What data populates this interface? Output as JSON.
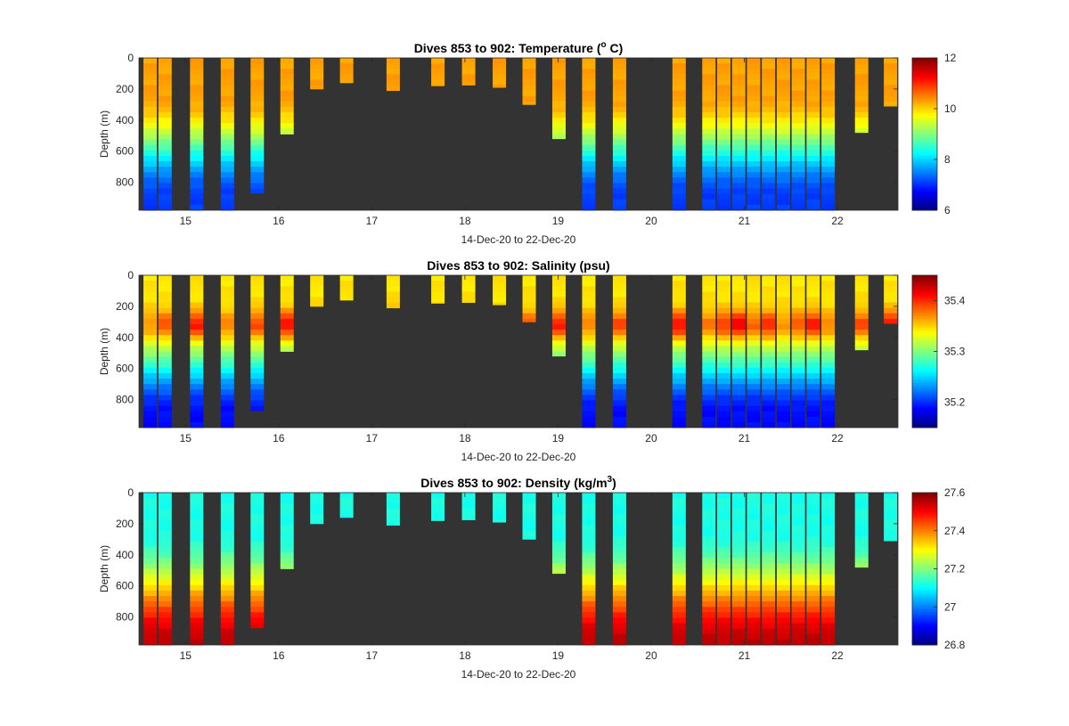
{
  "figure": {
    "background": "#ffffff",
    "plot_background": "#333333",
    "colormap": "jet"
  },
  "chart_data": [
    {
      "type": "heatmap",
      "title": "Dives 853 to 902: Temperature (° C)",
      "title_parts": {
        "prefix": "Dives 853 to 902: Temperature (",
        "superscript": "o",
        "suffix": " C)"
      },
      "xlabel": "14-Dec-20 to 22-Dec-20",
      "ylabel": "Depth (m)",
      "x_ticks": [
        "15",
        "16",
        "17",
        "18",
        "19",
        "20",
        "21",
        "22"
      ],
      "y_ticks": [
        "0",
        "200",
        "400",
        "600",
        "800"
      ],
      "xlim": [
        14.5,
        22.65
      ],
      "ylim": [
        0,
        980
      ],
      "y_reversed": true,
      "colorbar": {
        "min": 6,
        "max": 12,
        "ticks": [
          "6",
          "8",
          "10",
          "12"
        ]
      },
      "profile_model": {
        "surface": 10.3,
        "deep": 7.1,
        "thermo_start": 250,
        "thermo_width": 650
      },
      "dives": [
        {
          "day": 14.62,
          "max_depth": 980
        },
        {
          "day": 14.78,
          "max_depth": 980
        },
        {
          "day": 15.12,
          "max_depth": 980
        },
        {
          "day": 15.45,
          "max_depth": 980
        },
        {
          "day": 15.77,
          "max_depth": 870
        },
        {
          "day": 16.09,
          "max_depth": 490
        },
        {
          "day": 16.41,
          "max_depth": 200
        },
        {
          "day": 16.73,
          "max_depth": 160
        },
        {
          "day": 17.23,
          "max_depth": 210
        },
        {
          "day": 17.71,
          "max_depth": 180
        },
        {
          "day": 18.04,
          "max_depth": 175
        },
        {
          "day": 18.37,
          "max_depth": 190
        },
        {
          "day": 18.69,
          "max_depth": 300
        },
        {
          "day": 19.01,
          "max_depth": 520
        },
        {
          "day": 19.33,
          "max_depth": 980
        },
        {
          "day": 19.66,
          "max_depth": 980
        },
        {
          "day": 20.3,
          "max_depth": 980
        },
        {
          "day": 20.62,
          "max_depth": 980
        },
        {
          "day": 20.78,
          "max_depth": 980
        },
        {
          "day": 20.94,
          "max_depth": 980
        },
        {
          "day": 21.1,
          "max_depth": 980
        },
        {
          "day": 21.26,
          "max_depth": 980
        },
        {
          "day": 21.42,
          "max_depth": 980
        },
        {
          "day": 21.58,
          "max_depth": 980
        },
        {
          "day": 21.74,
          "max_depth": 980
        },
        {
          "day": 21.9,
          "max_depth": 980
        },
        {
          "day": 22.26,
          "max_depth": 480
        },
        {
          "day": 22.57,
          "max_depth": 310
        }
      ]
    },
    {
      "type": "heatmap",
      "title": "Dives 853 to 902: Salinity (psu)",
      "xlabel": "14-Dec-20 to 22-Dec-20",
      "ylabel": "Depth (m)",
      "x_ticks": [
        "15",
        "16",
        "17",
        "18",
        "19",
        "20",
        "21",
        "22"
      ],
      "y_ticks": [
        "0",
        "200",
        "400",
        "600",
        "800"
      ],
      "xlim": [
        14.5,
        22.65
      ],
      "ylim": [
        0,
        980
      ],
      "y_reversed": true,
      "colorbar": {
        "min": 35.15,
        "max": 35.45,
        "ticks": [
          "35.2",
          "35.3",
          "35.4"
        ]
      },
      "profile_model": {
        "surface": 35.345,
        "deep": 35.19,
        "thermo_start": 300,
        "thermo_width": 600,
        "core_depth": 320,
        "core_anomaly": 0.07
      },
      "dives": [
        {
          "day": 14.62,
          "max_depth": 980
        },
        {
          "day": 14.78,
          "max_depth": 980
        },
        {
          "day": 15.12,
          "max_depth": 980
        },
        {
          "day": 15.45,
          "max_depth": 980
        },
        {
          "day": 15.77,
          "max_depth": 870
        },
        {
          "day": 16.09,
          "max_depth": 490
        },
        {
          "day": 16.41,
          "max_depth": 200
        },
        {
          "day": 16.73,
          "max_depth": 160
        },
        {
          "day": 17.23,
          "max_depth": 210
        },
        {
          "day": 17.71,
          "max_depth": 180
        },
        {
          "day": 18.04,
          "max_depth": 175
        },
        {
          "day": 18.37,
          "max_depth": 190
        },
        {
          "day": 18.69,
          "max_depth": 300
        },
        {
          "day": 19.01,
          "max_depth": 520
        },
        {
          "day": 19.33,
          "max_depth": 980
        },
        {
          "day": 19.66,
          "max_depth": 980
        },
        {
          "day": 20.3,
          "max_depth": 980
        },
        {
          "day": 20.62,
          "max_depth": 980
        },
        {
          "day": 20.78,
          "max_depth": 980
        },
        {
          "day": 20.94,
          "max_depth": 980
        },
        {
          "day": 21.1,
          "max_depth": 980
        },
        {
          "day": 21.26,
          "max_depth": 980
        },
        {
          "day": 21.42,
          "max_depth": 980
        },
        {
          "day": 21.58,
          "max_depth": 980
        },
        {
          "day": 21.74,
          "max_depth": 980
        },
        {
          "day": 21.9,
          "max_depth": 980
        },
        {
          "day": 22.26,
          "max_depth": 480
        },
        {
          "day": 22.57,
          "max_depth": 310
        }
      ]
    },
    {
      "type": "heatmap",
      "title": "Dives 853 to 902: Density (kg/m³)",
      "title_parts": {
        "prefix": "Dives 853 to 902: Density (kg/m",
        "superscript": "3",
        "suffix": ")"
      },
      "xlabel": "14-Dec-20 to 22-Dec-20",
      "ylabel": "Depth (m)",
      "x_ticks": [
        "15",
        "16",
        "17",
        "18",
        "19",
        "20",
        "21",
        "22"
      ],
      "y_ticks": [
        "0",
        "200",
        "400",
        "600",
        "800"
      ],
      "xlim": [
        14.5,
        22.65
      ],
      "ylim": [
        0,
        980
      ],
      "y_reversed": true,
      "colorbar": {
        "min": 26.8,
        "max": 27.6,
        "ticks": [
          "26.8",
          "27",
          "27.2",
          "27.4",
          "27.6"
        ]
      },
      "profile_model": {
        "surface": 27.12,
        "deep": 27.55,
        "thermo_start": 250,
        "thermo_width": 730
      },
      "dives": [
        {
          "day": 14.62,
          "max_depth": 980
        },
        {
          "day": 14.78,
          "max_depth": 980
        },
        {
          "day": 15.12,
          "max_depth": 980
        },
        {
          "day": 15.45,
          "max_depth": 980
        },
        {
          "day": 15.77,
          "max_depth": 870
        },
        {
          "day": 16.09,
          "max_depth": 490
        },
        {
          "day": 16.41,
          "max_depth": 200
        },
        {
          "day": 16.73,
          "max_depth": 160
        },
        {
          "day": 17.23,
          "max_depth": 210
        },
        {
          "day": 17.71,
          "max_depth": 180
        },
        {
          "day": 18.04,
          "max_depth": 175
        },
        {
          "day": 18.37,
          "max_depth": 190
        },
        {
          "day": 18.69,
          "max_depth": 300
        },
        {
          "day": 19.01,
          "max_depth": 520
        },
        {
          "day": 19.33,
          "max_depth": 980
        },
        {
          "day": 19.66,
          "max_depth": 980
        },
        {
          "day": 20.3,
          "max_depth": 980
        },
        {
          "day": 20.62,
          "max_depth": 980
        },
        {
          "day": 20.78,
          "max_depth": 980
        },
        {
          "day": 20.94,
          "max_depth": 980
        },
        {
          "day": 21.1,
          "max_depth": 980
        },
        {
          "day": 21.26,
          "max_depth": 980
        },
        {
          "day": 21.42,
          "max_depth": 980
        },
        {
          "day": 21.58,
          "max_depth": 980
        },
        {
          "day": 21.74,
          "max_depth": 980
        },
        {
          "day": 21.9,
          "max_depth": 980
        },
        {
          "day": 22.26,
          "max_depth": 480
        },
        {
          "day": 22.57,
          "max_depth": 310
        }
      ]
    }
  ]
}
